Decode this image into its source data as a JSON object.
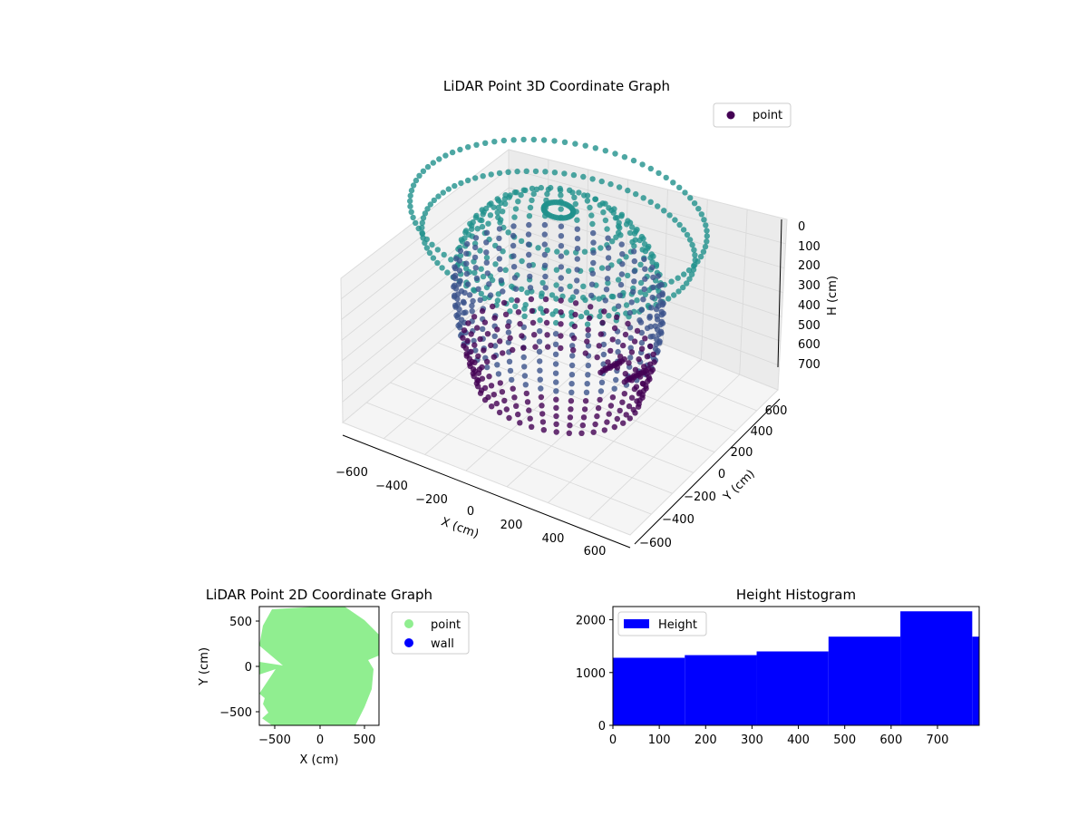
{
  "chart_data": [
    {
      "type": "scatter",
      "title": "LiDAR Point 3D Coordinate Graph",
      "xlabel": "X (cm)",
      "ylabel": "Y (cm)",
      "zlabel": "H (cm)",
      "legend": [
        "point"
      ],
      "legend_placement": "top-right",
      "xlim": [
        -650,
        650
      ],
      "ylim": [
        -650,
        650
      ],
      "zlim": [
        0,
        780
      ],
      "z_inverted": true,
      "x_ticks": [
        "−600",
        "−400",
        "−200",
        "0",
        "200",
        "400",
        "600"
      ],
      "y_ticks": [
        "−600",
        "−400",
        "−200",
        "0",
        "200",
        "400",
        "600"
      ],
      "z_ticks": [
        "0",
        "100",
        "200",
        "300",
        "400",
        "500",
        "600",
        "700"
      ],
      "colormap": [
        "#440154",
        "#3b528b",
        "#21918c",
        "#5ec962",
        "#b5de2b"
      ],
      "structure": {
        "ring_radius": 600,
        "arc_start_height": 60,
        "arc_end_height": 700,
        "notes": "dense hemispherical shell of ribbed arcs colored by height"
      }
    },
    {
      "type": "scatter",
      "title": "LiDAR Point 2D Coordinate Graph",
      "xlabel": "X (cm)",
      "ylabel": "Y (cm)",
      "xlim": [
        -650,
        650
      ],
      "ylim": [
        -650,
        650
      ],
      "x_ticks": [
        "−500",
        "0",
        "500"
      ],
      "y_ticks": [
        "−500",
        "0",
        "500"
      ],
      "series": [
        {
          "name": "point",
          "color": "#90ee90"
        },
        {
          "name": "wall",
          "color": "#0000ff"
        }
      ],
      "legend_placement": "outside-right"
    },
    {
      "type": "bar",
      "title": "Height Histogram",
      "series": [
        {
          "name": "Height",
          "color": "#0000ff"
        }
      ],
      "bins": [
        {
          "x0": 0,
          "x1": 155,
          "count": 1280
        },
        {
          "x0": 155,
          "x1": 310,
          "count": 1330
        },
        {
          "x0": 310,
          "x1": 465,
          "count": 1400
        },
        {
          "x0": 465,
          "x1": 620,
          "count": 1680
        },
        {
          "x0": 620,
          "x1": 775,
          "count": 2160
        },
        {
          "x0": 775,
          "x1": 790,
          "count": 1680
        }
      ],
      "xlim": [
        0,
        790
      ],
      "ylim": [
        0,
        2250
      ],
      "x_ticks": [
        "0",
        "100",
        "200",
        "300",
        "400",
        "500",
        "600",
        "700"
      ],
      "y_ticks": [
        "0",
        "1000",
        "2000"
      ],
      "legend_placement": "top-left"
    }
  ]
}
